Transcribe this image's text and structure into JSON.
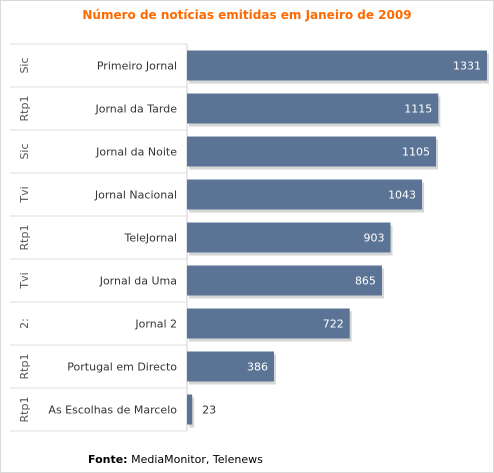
{
  "chart_data": {
    "type": "bar",
    "orientation": "horizontal",
    "title": "Número de notícias emitidas em Janeiro de 2009",
    "categories": [
      "Primeiro Jornal",
      "Jornal da Tarde",
      "Jornal da Noite",
      "Jornal Nacional",
      "TeleJornal",
      "Jornal da Uma",
      "Jornal 2",
      "Portugal em Directo",
      "As Escolhas de Marcelo"
    ],
    "groups": [
      "Sic",
      "Rtp1",
      "Sic",
      "Tvi",
      "Rtp1",
      "Tvi",
      "2:",
      "Rtp1",
      "Rtp1"
    ],
    "values": [
      1331,
      1115,
      1105,
      1043,
      903,
      865,
      722,
      386,
      23
    ],
    "xlim": [
      0,
      1340
    ],
    "grid": false,
    "bar_color": "#5b7496",
    "label_color": "#ffffff"
  },
  "source": {
    "label": "Fonte:",
    "text": "MediaMonitor, Telenews"
  }
}
